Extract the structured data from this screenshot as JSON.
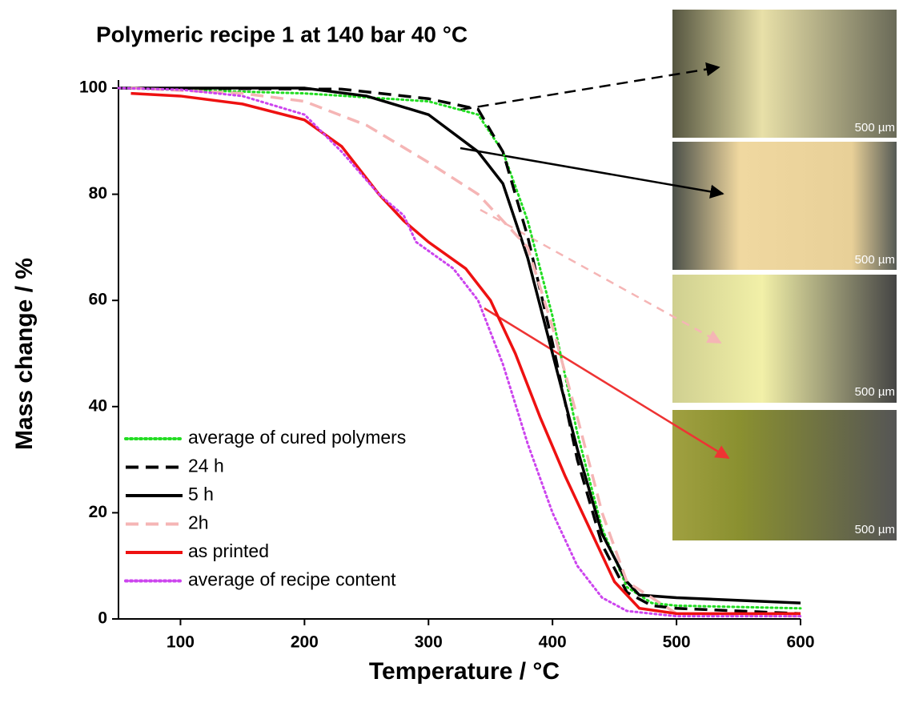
{
  "chart_data": {
    "type": "line",
    "title": "Polymeric recipe 1 at 140 bar 40 °C",
    "x_label": "Temperature / °C",
    "y_label": "Mass change / %",
    "xlim": [
      50,
      600
    ],
    "xticks": [
      100,
      200,
      300,
      400,
      500,
      600
    ],
    "ylim": [
      0,
      100
    ],
    "yticks": [
      0,
      20,
      40,
      60,
      80,
      100
    ],
    "legend": "lower left",
    "series": [
      {
        "name": "average of cured polymers",
        "color": "#22dd22",
        "style": "dotted",
        "x": [
          50,
          200,
          300,
          340,
          360,
          380,
          400,
          420,
          440,
          460,
          480,
          500,
          600
        ],
        "values": [
          100,
          99,
          97.5,
          95,
          88,
          75,
          57,
          35,
          17,
          6,
          3,
          2.5,
          2
        ]
      },
      {
        "name": "24 h",
        "color": "#000000",
        "style": "dashed",
        "x": [
          50,
          230,
          300,
          340,
          360,
          380,
          400,
          420,
          440,
          460,
          480,
          500,
          600
        ],
        "values": [
          100,
          99.8,
          98,
          96,
          88,
          72,
          52,
          30,
          14,
          5,
          2.5,
          2,
          1
        ]
      },
      {
        "name": "5 h",
        "color": "#000000",
        "style": "solid",
        "x": [
          60,
          200,
          250,
          300,
          340,
          360,
          380,
          400,
          420,
          440,
          460,
          470,
          500,
          600
        ],
        "values": [
          100,
          100,
          98.5,
          95,
          88,
          82,
          68,
          50,
          32,
          16,
          7,
          4.5,
          4,
          3
        ]
      },
      {
        "name": "2h",
        "color": "#f5b5b5",
        "style": "dashed",
        "x": [
          60,
          150,
          200,
          250,
          300,
          340,
          380,
          400,
          420,
          440,
          460,
          500,
          600
        ],
        "values": [
          100,
          99,
          97.5,
          93,
          86,
          80,
          70,
          55,
          38,
          20,
          7,
          1,
          0.5
        ]
      },
      {
        "name": "as printed",
        "color": "#ee1111",
        "style": "solid",
        "x": [
          60,
          100,
          150,
          200,
          230,
          260,
          280,
          300,
          330,
          350,
          370,
          390,
          410,
          430,
          450,
          470,
          500,
          600
        ],
        "values": [
          99,
          98.5,
          97,
          94,
          89,
          80,
          75,
          71,
          66,
          60,
          50,
          38,
          27,
          17,
          7,
          2,
          1,
          1
        ]
      },
      {
        "name": "average of recipe content",
        "color": "#cc44ee",
        "style": "dotted",
        "x": [
          50,
          100,
          150,
          200,
          230,
          260,
          280,
          290,
          320,
          340,
          360,
          380,
          400,
          420,
          440,
          460,
          500,
          600
        ],
        "values": [
          100,
          99.7,
          98.5,
          95,
          88,
          80,
          76,
          71,
          66,
          60,
          48,
          33,
          20,
          10,
          4,
          1.5,
          0.5,
          0.5
        ]
      }
    ],
    "annotations": [
      "500 µm",
      "500 µm",
      "500 µm",
      "500 µm"
    ]
  }
}
